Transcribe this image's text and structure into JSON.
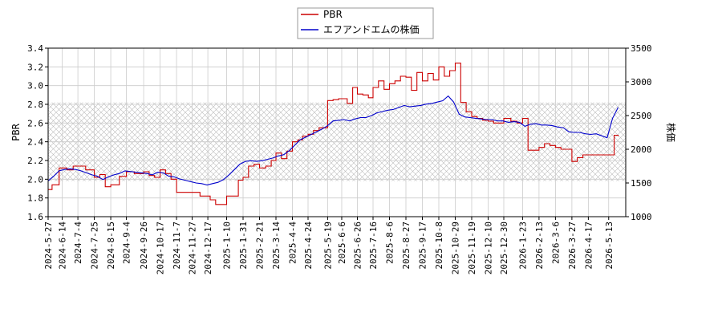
{
  "chart_data": {
    "type": "line",
    "title": "",
    "xlabel": "",
    "ylabel": "PBR",
    "ylabel_right": "株価",
    "ylim": [
      1.6,
      3.4
    ],
    "ylim_right": [
      1000,
      3500
    ],
    "y_ticks": [
      "1.6",
      "1.8",
      "2.0",
      "2.2",
      "2.4",
      "2.6",
      "2.8",
      "3.0",
      "3.2",
      "3.4"
    ],
    "y_ticks_right": [
      "1000",
      "1500",
      "2000",
      "2500",
      "3000",
      "3500"
    ],
    "x_ticks": [
      "2024-5-27",
      "2024-6-14",
      "2024-7-4",
      "2024-7-25",
      "2024-8-15",
      "2024-9-4",
      "2024-9-26",
      "2024-10-17",
      "2024-11-7",
      "2024-11-27",
      "2024-12-17",
      "2025-1-10",
      "2025-1-31",
      "2025-2-21",
      "2025-3-14",
      "2025-4-4",
      "2025-4-24",
      "2025-5-19",
      "2025-6-6",
      "2025-6-26",
      "2025-7-16",
      "2025-8-6",
      "2025-8-27",
      "2025-9-17",
      "2025-10-8",
      "2025-10-29",
      "2025-11-19",
      "2025-12-10",
      "2025-12-30",
      "2026-1-23",
      "2026-2-13",
      "2026-3-6",
      "2026-3-27",
      "2026-4-17",
      "2026-5-13"
    ],
    "grid": true,
    "legend_position": "top-center",
    "shaded_band": {
      "axis": "left",
      "range": [
        1.98,
        2.82
      ]
    },
    "series": [
      {
        "name": "PBR",
        "axis": "left",
        "color": "#cc0000",
        "x": [
          "2024-5-27",
          "2024-6-1",
          "2024-6-10",
          "2024-6-20",
          "2024-6-28",
          "2024-7-4",
          "2024-7-14",
          "2024-7-25",
          "2024-8-1",
          "2024-8-8",
          "2024-8-15",
          "2024-8-26",
          "2024-9-4",
          "2024-9-14",
          "2024-9-26",
          "2024-10-3",
          "2024-10-10",
          "2024-10-17",
          "2024-10-24",
          "2024-10-31",
          "2024-11-7",
          "2024-11-17",
          "2024-11-27",
          "2024-12-7",
          "2024-12-15",
          "2024-12-20",
          "2024-12-27",
          "2025-1-10",
          "2025-1-18",
          "2025-1-25",
          "2025-1-31",
          "2025-2-7",
          "2025-2-14",
          "2025-2-21",
          "2025-3-1",
          "2025-3-8",
          "2025-3-14",
          "2025-3-21",
          "2025-3-28",
          "2025-4-4",
          "2025-4-11",
          "2025-4-17",
          "2025-4-24",
          "2025-5-1",
          "2025-5-8",
          "2025-5-14",
          "2025-5-19",
          "2025-5-26",
          "2025-6-2",
          "2025-6-6",
          "2025-6-13",
          "2025-6-20",
          "2025-6-26",
          "2025-7-3",
          "2025-7-10",
          "2025-7-16",
          "2025-7-23",
          "2025-7-30",
          "2025-8-6",
          "2025-8-13",
          "2025-8-20",
          "2025-8-27",
          "2025-9-3",
          "2025-9-10",
          "2025-9-17",
          "2025-9-24",
          "2025-10-1",
          "2025-10-8",
          "2025-10-15",
          "2025-10-22",
          "2025-10-29",
          "2025-11-5",
          "2025-11-12",
          "2025-11-19",
          "2025-11-26",
          "2025-12-3",
          "2025-12-10",
          "2025-12-17",
          "2025-12-24",
          "2025-12-30",
          "2026-1-8",
          "2026-1-16",
          "2026-1-23",
          "2026-1-30",
          "2026-2-6",
          "2026-2-13",
          "2026-2-20",
          "2026-2-27",
          "2026-3-6",
          "2026-3-13",
          "2026-3-20",
          "2026-3-27",
          "2026-4-3",
          "2026-4-10",
          "2026-4-17",
          "2026-4-24",
          "2026-5-1",
          "2026-5-8",
          "2026-5-13",
          "2026-5-20",
          "2026-5-25"
        ],
        "y": [
          1.89,
          1.94,
          2.12,
          2.1,
          2.14,
          2.14,
          2.1,
          2.02,
          2.05,
          1.92,
          1.94,
          2.03,
          2.08,
          2.06,
          2.08,
          2.04,
          2.02,
          2.1,
          2.06,
          2.0,
          1.86,
          1.86,
          1.86,
          1.82,
          1.82,
          1.78,
          1.73,
          1.82,
          1.82,
          1.99,
          2.02,
          2.14,
          2.16,
          2.12,
          2.14,
          2.2,
          2.28,
          2.22,
          2.3,
          2.4,
          2.42,
          2.46,
          2.48,
          2.52,
          2.55,
          2.55,
          2.84,
          2.85,
          2.86,
          2.86,
          2.81,
          2.98,
          2.91,
          2.9,
          2.87,
          2.98,
          3.05,
          2.96,
          3.02,
          3.05,
          3.1,
          3.09,
          2.95,
          3.14,
          3.05,
          3.13,
          3.06,
          3.2,
          3.1,
          3.16,
          3.24,
          2.82,
          2.72,
          2.67,
          2.65,
          2.63,
          2.62,
          2.6,
          2.6,
          2.65,
          2.62,
          2.6,
          2.65,
          2.31,
          2.31,
          2.34,
          2.38,
          2.36,
          2.34,
          2.32,
          2.32,
          2.19,
          2.23,
          2.26,
          2.26,
          2.26,
          2.26,
          2.26,
          2.26,
          2.47,
          2.46
        ]
      },
      {
        "name": "エフアンドエムの株価",
        "axis": "right",
        "color": "#0000cc",
        "x": [
          "2024-5-27",
          "2024-6-3",
          "2024-6-10",
          "2024-6-17",
          "2024-6-24",
          "2024-7-1",
          "2024-7-8",
          "2024-7-15",
          "2024-7-22",
          "2024-7-29",
          "2024-8-5",
          "2024-8-12",
          "2024-8-19",
          "2024-8-26",
          "2024-9-2",
          "2024-9-9",
          "2024-9-16",
          "2024-9-23",
          "2024-9-30",
          "2024-10-7",
          "2024-10-14",
          "2024-10-21",
          "2024-10-28",
          "2024-11-4",
          "2024-11-11",
          "2024-11-18",
          "2024-11-25",
          "2024-12-2",
          "2024-12-9",
          "2024-12-16",
          "2024-12-23",
          "2024-12-30",
          "2025-1-6",
          "2025-1-13",
          "2025-1-20",
          "2025-1-27",
          "2025-2-3",
          "2025-2-10",
          "2025-2-17",
          "2025-2-24",
          "2025-3-3",
          "2025-3-10",
          "2025-3-17",
          "2025-3-24",
          "2025-3-31",
          "2025-4-7",
          "2025-4-14",
          "2025-4-21",
          "2025-4-28",
          "2025-5-5",
          "2025-5-12",
          "2025-5-19",
          "2025-5-26",
          "2025-6-2",
          "2025-6-9",
          "2025-6-16",
          "2025-6-23",
          "2025-6-30",
          "2025-7-7",
          "2025-7-14",
          "2025-7-21",
          "2025-7-28",
          "2025-8-4",
          "2025-8-11",
          "2025-8-18",
          "2025-8-25",
          "2025-9-1",
          "2025-9-8",
          "2025-9-15",
          "2025-9-22",
          "2025-9-29",
          "2025-10-6",
          "2025-10-13",
          "2025-10-20",
          "2025-10-27",
          "2025-11-3",
          "2025-11-10",
          "2025-11-17",
          "2025-11-24",
          "2025-12-1",
          "2025-12-8",
          "2025-12-15",
          "2025-12-22",
          "2025-12-29",
          "2026-1-5",
          "2026-1-12",
          "2026-1-19",
          "2026-1-26",
          "2026-2-2",
          "2026-2-9",
          "2026-2-16",
          "2026-2-23",
          "2026-3-2",
          "2026-3-9",
          "2026-3-16",
          "2026-3-23",
          "2026-3-30",
          "2026-4-6",
          "2026-4-13",
          "2026-4-20",
          "2026-4-27",
          "2026-5-4",
          "2026-5-11",
          "2026-5-18",
          "2026-5-25"
        ],
        "y": [
          1530,
          1600,
          1680,
          1700,
          1710,
          1700,
          1680,
          1650,
          1620,
          1600,
          1550,
          1590,
          1620,
          1640,
          1680,
          1670,
          1660,
          1650,
          1640,
          1620,
          1660,
          1650,
          1600,
          1590,
          1560,
          1540,
          1520,
          1500,
          1490,
          1470,
          1490,
          1510,
          1550,
          1620,
          1700,
          1780,
          1820,
          1830,
          1820,
          1830,
          1850,
          1870,
          1900,
          1920,
          1980,
          2060,
          2140,
          2180,
          2220,
          2260,
          2300,
          2350,
          2420,
          2430,
          2440,
          2420,
          2450,
          2470,
          2470,
          2500,
          2540,
          2560,
          2580,
          2590,
          2620,
          2650,
          2630,
          2640,
          2650,
          2670,
          2680,
          2700,
          2720,
          2790,
          2700,
          2520,
          2480,
          2470,
          2460,
          2450,
          2440,
          2440,
          2420,
          2420,
          2400,
          2410,
          2400,
          2340,
          2370,
          2380,
          2360,
          2360,
          2350,
          2330,
          2320,
          2260,
          2250,
          2250,
          2230,
          2220,
          2230,
          2200,
          2170,
          2460,
          2620
        ]
      }
    ]
  }
}
